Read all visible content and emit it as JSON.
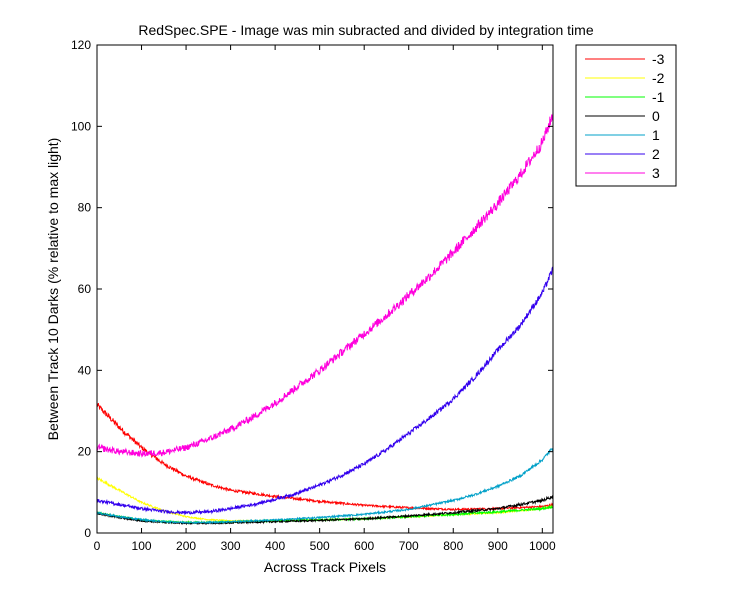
{
  "chart_data": {
    "type": "line",
    "title": "RedSpec.SPE - Image was min subracted and divided by integration time",
    "xlabel": "Across Track Pixels",
    "ylabel": "Between Track 10 Darks (% relative to max light)",
    "xlim": [
      0,
      1024
    ],
    "ylim": [
      0,
      120
    ],
    "xticks": [
      0,
      100,
      200,
      300,
      400,
      500,
      600,
      700,
      800,
      900,
      1000
    ],
    "yticks": [
      0,
      20,
      40,
      60,
      80,
      100,
      120
    ],
    "grid": false,
    "legend_position": "outside-top-right",
    "series": [
      {
        "name": "-3",
        "color": "#ff0000",
        "x": [
          0,
          50,
          100,
          150,
          200,
          250,
          300,
          400,
          500,
          600,
          700,
          750,
          800,
          900,
          1000,
          1024
        ],
        "y": [
          31.5,
          26,
          21,
          17,
          14,
          12,
          10.5,
          9,
          7.8,
          6.8,
          6.2,
          6,
          5.8,
          6,
          6.5,
          7
        ],
        "noise": 0.25
      },
      {
        "name": "-2",
        "color": "#ffff00",
        "x": [
          0,
          50,
          100,
          150,
          200,
          250,
          300,
          400,
          500,
          600,
          700,
          800,
          900,
          1000,
          1024
        ],
        "y": [
          13.5,
          10.5,
          7.5,
          5.5,
          4,
          3.3,
          3,
          3,
          3.2,
          3.5,
          4,
          4.5,
          5,
          6,
          6.5
        ],
        "noise": 0.2
      },
      {
        "name": "-1",
        "color": "#00ff00",
        "x": [
          0,
          50,
          100,
          150,
          200,
          250,
          300,
          400,
          500,
          600,
          700,
          800,
          900,
          1000,
          1024
        ],
        "y": [
          5,
          4,
          3.2,
          2.8,
          2.6,
          2.6,
          2.7,
          3,
          3.2,
          3.5,
          4,
          4.6,
          5.2,
          6,
          6.5
        ],
        "noise": 0.3
      },
      {
        "name": "0",
        "color": "#000000",
        "x": [
          0,
          50,
          100,
          150,
          200,
          250,
          300,
          400,
          500,
          600,
          700,
          800,
          900,
          1000,
          1024
        ],
        "y": [
          4.8,
          3.8,
          3,
          2.6,
          2.4,
          2.4,
          2.5,
          2.8,
          3.1,
          3.5,
          4.2,
          5,
          6,
          8,
          9
        ],
        "noise": 0.35
      },
      {
        "name": "1",
        "color": "#00a0c8",
        "x": [
          0,
          50,
          100,
          150,
          200,
          250,
          300,
          400,
          500,
          600,
          700,
          800,
          850,
          900,
          950,
          1000,
          1024
        ],
        "y": [
          5,
          4,
          3.3,
          2.8,
          2.6,
          2.6,
          2.8,
          3.2,
          3.8,
          4.6,
          5.8,
          8,
          9.5,
          11.5,
          14,
          18,
          21
        ],
        "noise": 0.4
      },
      {
        "name": "2",
        "color": "#3300ee",
        "x": [
          0,
          50,
          100,
          150,
          200,
          250,
          300,
          350,
          400,
          450,
          500,
          550,
          600,
          650,
          700,
          750,
          800,
          850,
          900,
          950,
          1000,
          1024
        ],
        "y": [
          8,
          7,
          6,
          5.3,
          5,
          5.2,
          6,
          7,
          8.3,
          9.8,
          11.8,
          14.2,
          17,
          20.5,
          24.5,
          28.5,
          33,
          38.5,
          45,
          51,
          59,
          65
        ],
        "noise": 0.8
      },
      {
        "name": "3",
        "color": "#ff00dd",
        "x": [
          0,
          50,
          100,
          150,
          200,
          250,
          300,
          350,
          400,
          450,
          500,
          550,
          600,
          650,
          700,
          750,
          800,
          850,
          900,
          950,
          1000,
          1024
        ],
        "y": [
          21,
          20,
          19.5,
          19.8,
          21,
          23,
          25.5,
          28.5,
          32,
          36,
          40,
          44.5,
          49,
          53.5,
          58.5,
          63.5,
          69,
          75,
          81,
          88,
          96,
          103
        ],
        "noise": 1.5
      }
    ]
  }
}
